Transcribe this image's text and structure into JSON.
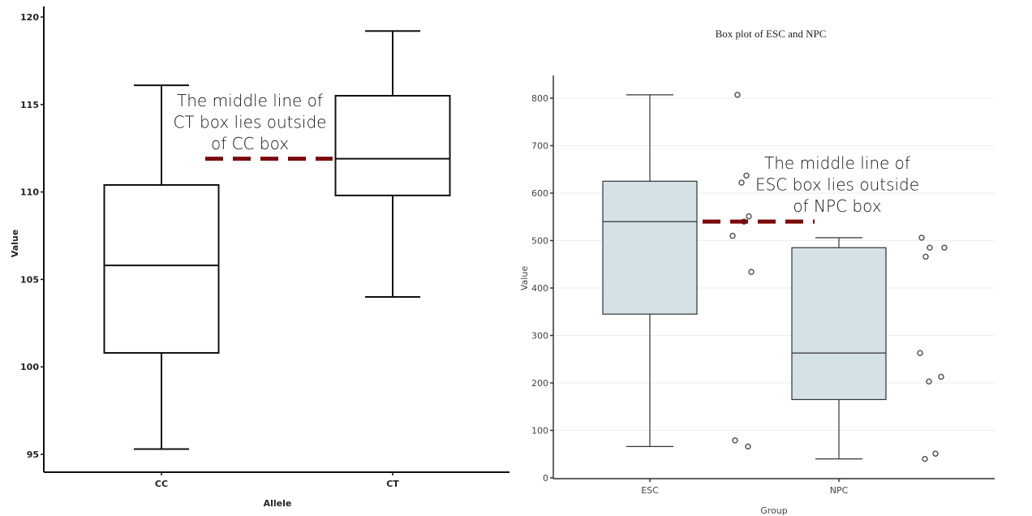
{
  "chart_data": [
    {
      "type": "box",
      "title": "",
      "xlabel": "Allele",
      "ylabel": "Value",
      "ylim": [
        94,
        120.6
      ],
      "yticks": [
        95,
        100,
        105,
        110,
        115,
        120
      ],
      "grid": false,
      "categories": [
        "CC",
        "CT"
      ],
      "boxes": [
        {
          "name": "CC",
          "min": 95.3,
          "q1": 100.8,
          "median": 105.8,
          "q3": 110.4,
          "max": 116.1
        },
        {
          "name": "CT",
          "min": 104.0,
          "q1": 109.8,
          "median": 111.9,
          "q3": 115.5,
          "max": 119.2
        }
      ],
      "box_fill": "#ffffff",
      "annotation": {
        "lines": [
          "The middle line of",
          "CT box lies outside",
          "of CC box"
        ],
        "dash_value": 111.9,
        "color": "#7b0a0a"
      }
    },
    {
      "type": "box",
      "title": "Box plot of ESC and NPC",
      "xlabel": "Group",
      "ylabel": "Value",
      "ylim": [
        0,
        850
      ],
      "yticks": [
        0,
        100,
        200,
        300,
        400,
        500,
        600,
        700,
        800
      ],
      "grid": true,
      "categories": [
        "ESC",
        "NPC"
      ],
      "boxes": [
        {
          "name": "ESC",
          "min": 66,
          "q1": 345,
          "median": 540,
          "q3": 625,
          "max": 807,
          "points": [
            807,
            637,
            622,
            551,
            540,
            510,
            434,
            79,
            66
          ]
        },
        {
          "name": "NPC",
          "min": 40,
          "q1": 165,
          "median": 263,
          "q3": 485,
          "max": 506,
          "points": [
            506,
            485,
            485,
            466,
            263,
            213,
            203,
            51,
            40
          ]
        }
      ],
      "box_fill": "#d4e2e7",
      "annotation": {
        "lines": [
          "The middle line of",
          "ESC box lies outside",
          "of NPC box"
        ],
        "dash_value": 540,
        "color": "#7b0a0a"
      }
    }
  ]
}
